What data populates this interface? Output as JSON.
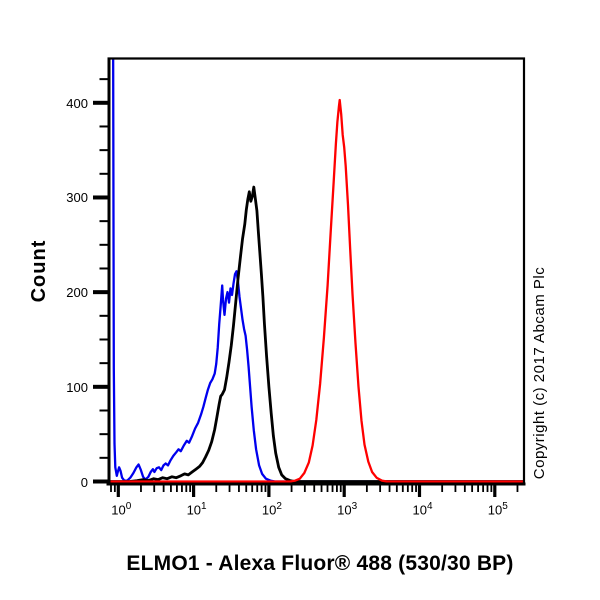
{
  "figure": {
    "background": "#ffffff",
    "copyright": "Copyright (c) 2017 Abcam Plc"
  },
  "chart_data": {
    "type": "line",
    "title": "ELMO1 - Alexa Fluor® 488 (530/30 BP)",
    "xlabel": "",
    "ylabel": "Count",
    "x_scale": "log10",
    "xlim_log10": [
      -0.14,
      5.4
    ],
    "ylim": [
      0,
      445
    ],
    "y_major_ticks": [
      0,
      100,
      200,
      300,
      400
    ],
    "y_minor_step": 25,
    "x_major_tick_exponents": [
      0,
      1,
      2,
      3,
      4,
      5
    ],
    "x_tick_label_base": "10",
    "grid": false,
    "legend": "none",
    "axis_color": "#000000",
    "series": [
      {
        "name": "blue-curve",
        "color": "#0000ee",
        "peak_x_approx": 35,
        "peak_count_approx": 222,
        "edge_spike": "off-scale pile-up spike at left axis edge",
        "points_log10x_count": [
          [
            -0.09,
            530
          ],
          [
            -0.07,
            530
          ],
          [
            -0.06,
            120
          ],
          [
            -0.05,
            40
          ],
          [
            -0.04,
            15
          ],
          [
            -0.02,
            6
          ],
          [
            -0.01,
            9
          ],
          [
            0.01,
            15
          ],
          [
            0.03,
            11
          ],
          [
            0.05,
            4
          ],
          [
            0.08,
            1
          ],
          [
            0.12,
            1
          ],
          [
            0.16,
            4
          ],
          [
            0.2,
            9
          ],
          [
            0.24,
            15
          ],
          [
            0.27,
            18
          ],
          [
            0.3,
            12
          ],
          [
            0.33,
            5
          ],
          [
            0.36,
            2
          ],
          [
            0.4,
            5
          ],
          [
            0.43,
            10
          ],
          [
            0.46,
            13
          ],
          [
            0.48,
            10
          ],
          [
            0.51,
            14
          ],
          [
            0.54,
            15
          ],
          [
            0.57,
            12
          ],
          [
            0.6,
            17
          ],
          [
            0.63,
            19
          ],
          [
            0.66,
            17
          ],
          [
            0.69,
            22
          ],
          [
            0.73,
            27
          ],
          [
            0.77,
            31
          ],
          [
            0.8,
            34
          ],
          [
            0.83,
            32
          ],
          [
            0.87,
            38
          ],
          [
            0.91,
            43
          ],
          [
            0.94,
            41
          ],
          [
            0.98,
            48
          ],
          [
            1.02,
            56
          ],
          [
            1.06,
            62
          ],
          [
            1.1,
            71
          ],
          [
            1.13,
            79
          ],
          [
            1.16,
            88
          ],
          [
            1.19,
            97
          ],
          [
            1.22,
            104
          ],
          [
            1.25,
            108
          ],
          [
            1.28,
            114
          ],
          [
            1.3,
            124
          ],
          [
            1.32,
            141
          ],
          [
            1.34,
            166
          ],
          [
            1.36,
            186
          ],
          [
            1.38,
            207
          ],
          [
            1.39,
            192
          ],
          [
            1.41,
            176
          ],
          [
            1.43,
            193
          ],
          [
            1.45,
            200
          ],
          [
            1.47,
            189
          ],
          [
            1.49,
            204
          ],
          [
            1.51,
            197
          ],
          [
            1.53,
            209
          ],
          [
            1.55,
            219
          ],
          [
            1.57,
            222
          ],
          [
            1.59,
            211
          ],
          [
            1.61,
            195
          ],
          [
            1.63,
            183
          ],
          [
            1.65,
            171
          ],
          [
            1.67,
            161
          ],
          [
            1.69,
            154
          ],
          [
            1.71,
            139
          ],
          [
            1.73,
            121
          ],
          [
            1.75,
            100
          ],
          [
            1.77,
            79
          ],
          [
            1.8,
            54
          ],
          [
            1.83,
            34
          ],
          [
            1.87,
            17
          ],
          [
            1.91,
            8
          ],
          [
            1.96,
            3
          ],
          [
            2.02,
            1
          ],
          [
            2.08,
            0
          ],
          [
            5.4,
            0
          ]
        ]
      },
      {
        "name": "black-curve",
        "color": "#000000",
        "peak_x_approx": 60,
        "peak_count_approx": 311,
        "points_log10x_count": [
          [
            -0.14,
            0
          ],
          [
            0.15,
            0
          ],
          [
            0.25,
            1
          ],
          [
            0.33,
            2
          ],
          [
            0.4,
            1
          ],
          [
            0.47,
            3
          ],
          [
            0.53,
            2
          ],
          [
            0.59,
            4
          ],
          [
            0.65,
            3
          ],
          [
            0.71,
            5
          ],
          [
            0.77,
            4
          ],
          [
            0.83,
            6
          ],
          [
            0.88,
            8
          ],
          [
            0.93,
            7
          ],
          [
            0.98,
            10
          ],
          [
            1.03,
            13
          ],
          [
            1.08,
            16
          ],
          [
            1.12,
            20
          ],
          [
            1.16,
            26
          ],
          [
            1.2,
            33
          ],
          [
            1.24,
            42
          ],
          [
            1.28,
            55
          ],
          [
            1.31,
            68
          ],
          [
            1.34,
            82
          ],
          [
            1.36,
            90
          ],
          [
            1.38,
            92
          ],
          [
            1.41,
            97
          ],
          [
            1.44,
            110
          ],
          [
            1.47,
            126
          ],
          [
            1.5,
            144
          ],
          [
            1.53,
            165
          ],
          [
            1.56,
            190
          ],
          [
            1.59,
            214
          ],
          [
            1.62,
            236
          ],
          [
            1.65,
            256
          ],
          [
            1.68,
            272
          ],
          [
            1.7,
            287
          ],
          [
            1.72,
            298
          ],
          [
            1.74,
            306
          ],
          [
            1.76,
            296
          ],
          [
            1.78,
            301
          ],
          [
            1.8,
            311
          ],
          [
            1.82,
            299
          ],
          [
            1.84,
            286
          ],
          [
            1.86,
            263
          ],
          [
            1.88,
            241
          ],
          [
            1.9,
            219
          ],
          [
            1.92,
            195
          ],
          [
            1.94,
            167
          ],
          [
            1.97,
            132
          ],
          [
            2.0,
            100
          ],
          [
            2.03,
            72
          ],
          [
            2.06,
            48
          ],
          [
            2.09,
            30
          ],
          [
            2.13,
            15
          ],
          [
            2.17,
            7
          ],
          [
            2.22,
            3
          ],
          [
            2.28,
            1
          ],
          [
            2.34,
            0
          ],
          [
            5.4,
            0
          ]
        ]
      },
      {
        "name": "red-curve",
        "color": "#ff0000",
        "peak_x_approx": 875,
        "peak_count_approx": 403,
        "points_log10x_count": [
          [
            -0.14,
            0
          ],
          [
            2.28,
            0
          ],
          [
            2.35,
            1
          ],
          [
            2.41,
            3
          ],
          [
            2.47,
            9
          ],
          [
            2.53,
            20
          ],
          [
            2.58,
            38
          ],
          [
            2.63,
            65
          ],
          [
            2.68,
            103
          ],
          [
            2.73,
            152
          ],
          [
            2.78,
            207
          ],
          [
            2.82,
            262
          ],
          [
            2.86,
            317
          ],
          [
            2.89,
            357
          ],
          [
            2.91,
            380
          ],
          [
            2.93,
            396
          ],
          [
            2.94,
            403
          ],
          [
            2.96,
            388
          ],
          [
            2.98,
            366
          ],
          [
            3.0,
            353
          ],
          [
            3.02,
            333
          ],
          [
            3.05,
            292
          ],
          [
            3.08,
            245
          ],
          [
            3.11,
            198
          ],
          [
            3.15,
            146
          ],
          [
            3.19,
            100
          ],
          [
            3.23,
            64
          ],
          [
            3.27,
            39
          ],
          [
            3.32,
            21
          ],
          [
            3.37,
            10
          ],
          [
            3.43,
            4
          ],
          [
            3.5,
            1
          ],
          [
            3.57,
            0
          ],
          [
            5.4,
            0
          ]
        ]
      }
    ]
  }
}
